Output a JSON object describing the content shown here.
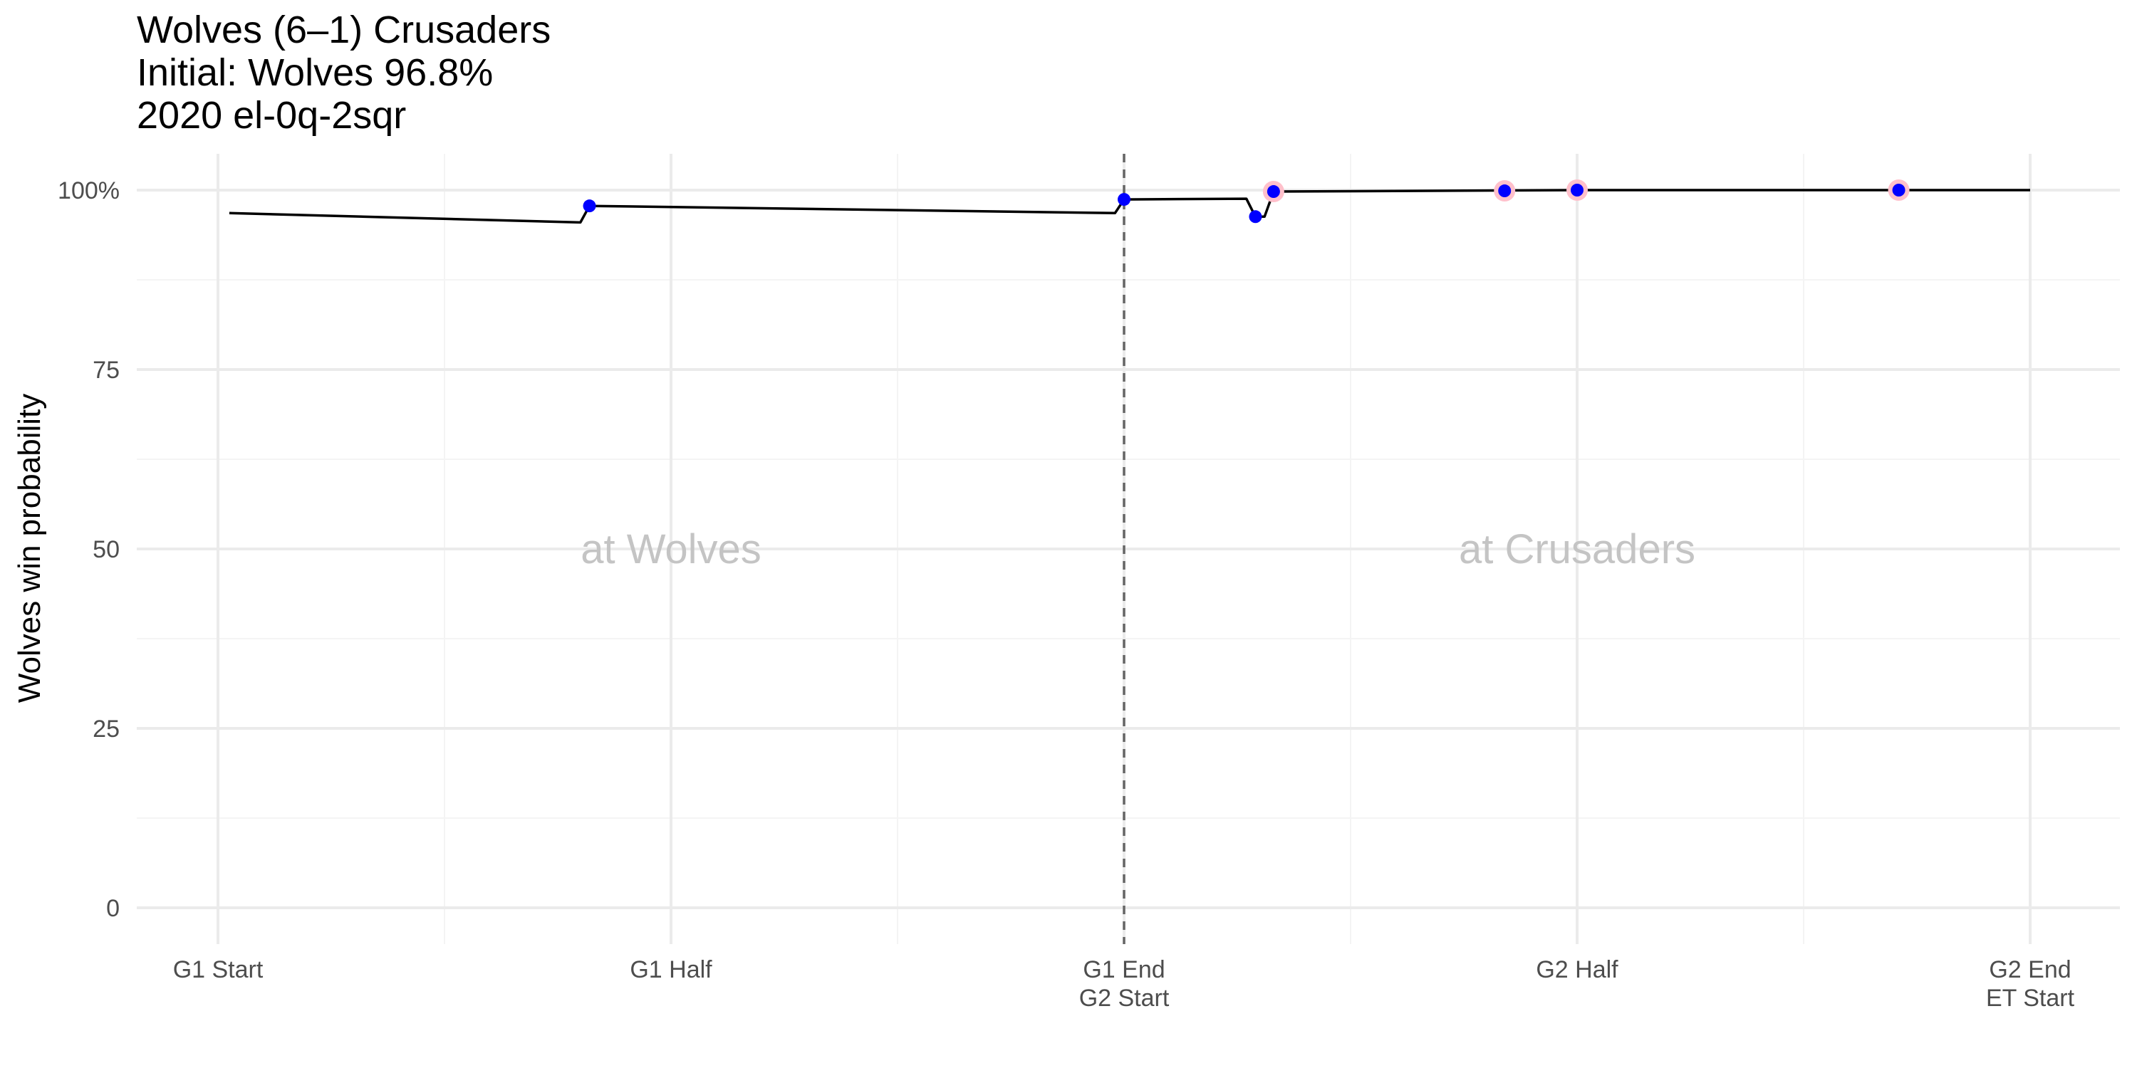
{
  "chart_data": {
    "type": "line",
    "title_lines": [
      "Wolves (6–1) Crusaders",
      "Initial: Wolves 96.8%",
      "2020 el-0q-2sqr"
    ],
    "ylabel": "Wolves win probability",
    "xlabel": "",
    "ylim": [
      0,
      100
    ],
    "xlim": [
      -0.3,
      4.2
    ],
    "grid": true,
    "y_ticks": [
      {
        "value": 0,
        "label": "0"
      },
      {
        "value": 25,
        "label": "25"
      },
      {
        "value": 50,
        "label": "50"
      },
      {
        "value": 75,
        "label": "75"
      },
      {
        "value": 100,
        "label": "100%"
      }
    ],
    "x_ticks": [
      {
        "value": 0,
        "label": "G1 Start"
      },
      {
        "value": 1,
        "label": "G1 Half"
      },
      {
        "value": 2,
        "label": "G1 End\nG2 Start"
      },
      {
        "value": 3,
        "label": "G2 Half"
      },
      {
        "value": 4,
        "label": "G2 End\nET Start"
      }
    ],
    "vline": {
      "x": 2,
      "style": "dashed"
    },
    "region_labels": [
      {
        "text": "at Wolves",
        "x": 1,
        "y": 50
      },
      {
        "text": "at Crusaders",
        "x": 3,
        "y": 50
      }
    ],
    "series": [
      {
        "line_color": "#000000",
        "x": [
          0.025,
          0.8,
          0.82,
          1.98,
          2.0,
          2.27,
          2.29,
          2.31,
          2.33,
          3.0,
          4.0
        ],
        "y": [
          96.8,
          95.5,
          97.8,
          96.8,
          98.7,
          98.8,
          96.3,
          96.3,
          99.8,
          100.0,
          100.0
        ]
      }
    ],
    "events": [
      {
        "x": 0.82,
        "y": 97.8,
        "color": "#0000ff",
        "ring": false
      },
      {
        "x": 2.0,
        "y": 98.7,
        "color": "#0000ff",
        "ring": false
      },
      {
        "x": 2.29,
        "y": 96.3,
        "color": "#0000ff",
        "ring": false
      },
      {
        "x": 2.33,
        "y": 99.8,
        "color": "#0000ff",
        "ring": true
      },
      {
        "x": 2.84,
        "y": 99.9,
        "color": "#0000ff",
        "ring": true
      },
      {
        "x": 3.0,
        "y": 100.0,
        "color": "#0000ff",
        "ring": true
      },
      {
        "x": 3.71,
        "y": 100.0,
        "color": "#0000ff",
        "ring": true
      }
    ],
    "colors": {
      "grid": "#ebebeb",
      "line": "#000000",
      "point": "#0000ff",
      "point_ring": "#ffc0cb",
      "vline": "#666666",
      "region_text": "#c4c4c4",
      "tick_text": "#4d4d4d"
    }
  }
}
